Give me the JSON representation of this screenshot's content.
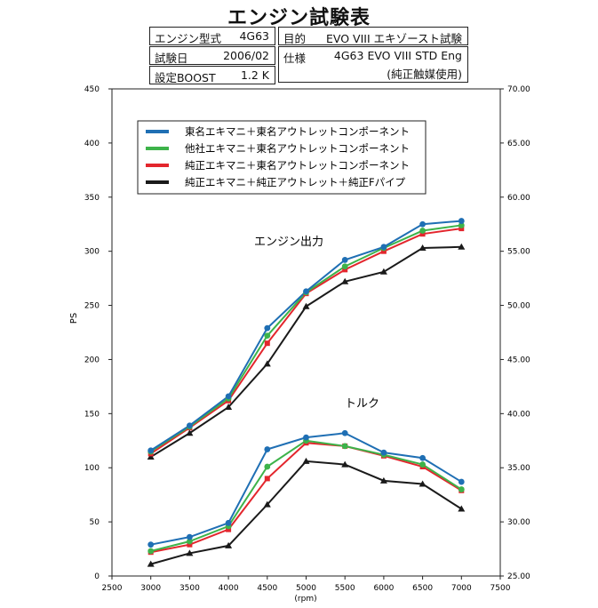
{
  "header": {
    "title": "エンジン試験表",
    "engine_model_label": "エンジン型式",
    "engine_model_value": "4G63",
    "purpose_label": "目的",
    "purpose_value": "EVO VIII エキゾースト試験",
    "test_date_label": "試験日",
    "test_date_value": "2006/02",
    "spec_label": "仕様",
    "spec_value_line1": "4G63 EVO VIII STD Eng",
    "spec_value_line2": "(純正触媒使用)",
    "boost_label": "設定BOOST",
    "boost_value": "1.2 K"
  },
  "chart_data": {
    "type": "line",
    "xlabel": "(rpm)",
    "ylabel": "PS",
    "xlim": [
      2500,
      7500
    ],
    "ylim_left": [
      0,
      450
    ],
    "ylim_right": [
      25.0,
      70.0
    ],
    "x_ticks": [
      2500,
      3000,
      3500,
      4000,
      4500,
      5000,
      5500,
      6000,
      6500,
      7000,
      7500
    ],
    "y_ticks_left": [
      0,
      50,
      100,
      150,
      200,
      250,
      300,
      350,
      400,
      450
    ],
    "y_ticks_right": [
      "25.00",
      "30.00",
      "35.00",
      "40.00",
      "45.00",
      "50.00",
      "55.00",
      "60.00",
      "65.00",
      "70.00"
    ],
    "grid": false,
    "legend_position": "top-left",
    "annotations": {
      "power": "エンジン出力",
      "torque": "トルク"
    },
    "x": [
      3000,
      3500,
      4000,
      4500,
      5000,
      5500,
      6000,
      6500,
      7000
    ],
    "series": [
      {
        "name": "東名エキマニ＋東名アウトレットコンポーネント",
        "color": "#1f6fb4",
        "marker": "circle",
        "power_ps": [
          116,
          139,
          166,
          229,
          263,
          292,
          304,
          325,
          328
        ],
        "torque_right_axis": [
          27.9,
          28.6,
          29.9,
          36.7,
          37.8,
          38.2,
          36.4,
          35.9,
          33.7
        ]
      },
      {
        "name": "他社エキマニ＋東名アウトレットコンポーネント",
        "color": "#3db34a",
        "marker": "circle",
        "power_ps": [
          115,
          138,
          164,
          222,
          262,
          286,
          303,
          319,
          324
        ],
        "torque_right_axis": [
          27.3,
          28.2,
          29.6,
          35.1,
          37.5,
          37.0,
          36.2,
          35.3,
          33.0
        ]
      },
      {
        "name": "純正エキマニ＋東名アウトレットコンポーネント",
        "color": "#e3262d",
        "marker": "square",
        "power_ps": [
          113,
          137,
          162,
          215,
          261,
          283,
          300,
          316,
          321
        ],
        "torque_right_axis": [
          27.2,
          27.9,
          29.3,
          34.0,
          37.3,
          37.0,
          36.1,
          35.1,
          32.9
        ]
      },
      {
        "name": "純正エキマニ＋純正アウトレット＋純正Fパイプ",
        "color": "#1a1a1a",
        "marker": "triangle",
        "power_ps": [
          110,
          132,
          156,
          196,
          249,
          272,
          281,
          303,
          304
        ],
        "torque_right_axis": [
          26.1,
          27.1,
          27.8,
          31.6,
          35.6,
          35.3,
          33.8,
          33.5,
          31.2
        ]
      }
    ]
  }
}
